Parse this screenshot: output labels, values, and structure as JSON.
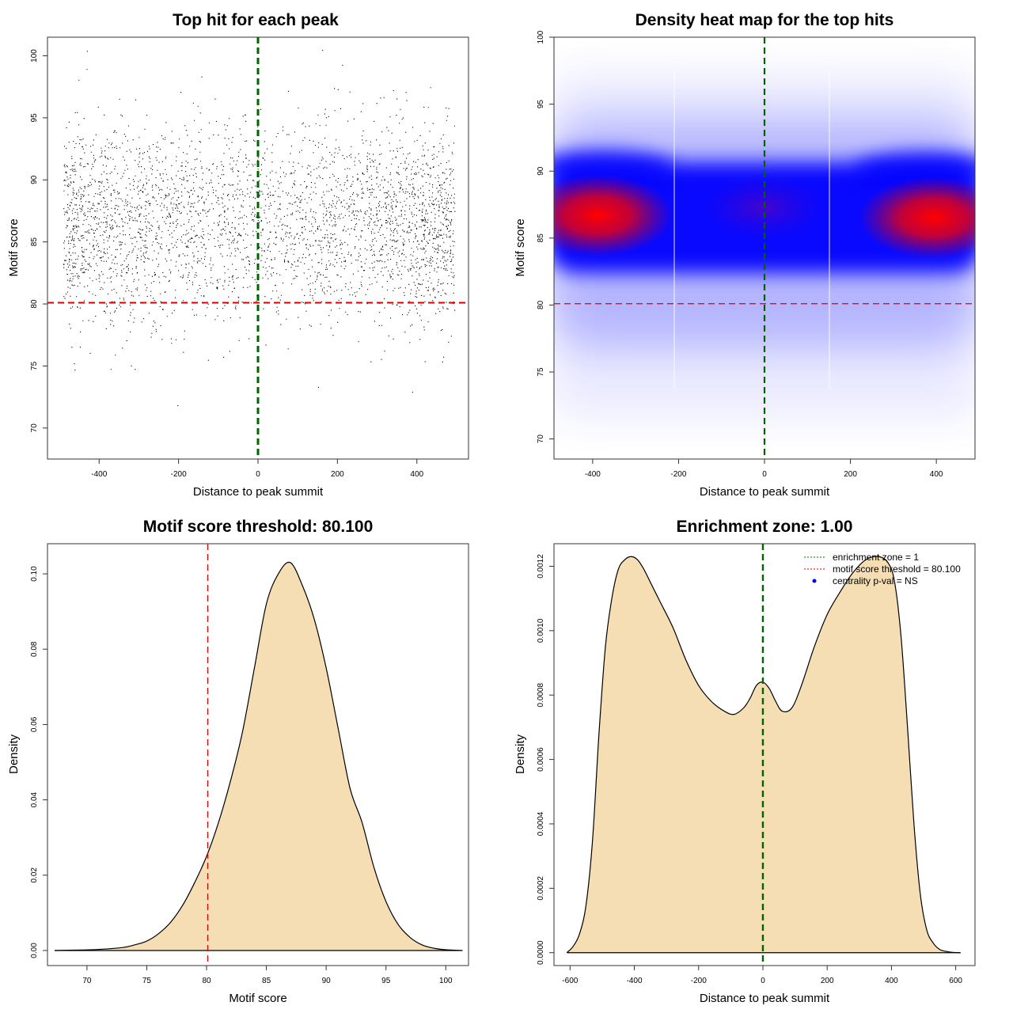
{
  "chart_data": [
    {
      "type": "scatter",
      "title": "Top hit for each peak",
      "xlabel": "Distance to peak summit",
      "ylabel": "Motif score",
      "xlim": [
        -530,
        530
      ],
      "ylim": [
        67.5,
        101.5
      ],
      "xticks": [
        -400,
        -200,
        0,
        200,
        400
      ],
      "yticks": [
        70,
        75,
        80,
        85,
        90,
        95,
        100
      ],
      "x_range_of_points": [
        -490,
        495
      ],
      "approx_point_count": 13000,
      "density_profile_note": "points concentrated between score 83 and 90, denser near x = -400 and x = +400",
      "vline": {
        "x": 0,
        "color": "#006400",
        "style": "dashed"
      },
      "hline": {
        "y": 80.1,
        "color": "#dd0000",
        "style": "dashed"
      }
    },
    {
      "type": "heatmap",
      "title": "Density heat map for the top hits",
      "xlabel": "Distance to peak summit",
      "ylabel": "Motif score",
      "xlim": [
        -490,
        490
      ],
      "ylim": [
        68.5,
        100
      ],
      "xticks": [
        -400,
        -200,
        0,
        200,
        400
      ],
      "yticks": [
        70,
        75,
        80,
        85,
        90,
        95,
        100
      ],
      "hotspots": [
        {
          "x": -390,
          "y": 87.4,
          "relative_density": 1.0
        },
        {
          "x": 390,
          "y": 86.8,
          "relative_density": 0.95
        },
        {
          "x": 0,
          "y": 86.5,
          "relative_density": 0.45
        }
      ],
      "color_scale": [
        "#ffffff",
        "#0000ff",
        "#ff0000"
      ],
      "vline": {
        "x": 0,
        "color": "#006400",
        "style": "dashed"
      },
      "hline": {
        "y": 80.1,
        "color": "#dd0000",
        "style": "dashed"
      }
    },
    {
      "type": "area",
      "title": "Motif score threshold: 80.100",
      "xlabel": "Motif score",
      "ylabel": "Density",
      "xlim": [
        66.7,
        101.9
      ],
      "ylim": [
        -0.004,
        0.108
      ],
      "xticks": [
        70,
        75,
        80,
        85,
        90,
        95,
        100
      ],
      "yticks": [
        0.0,
        0.02,
        0.04,
        0.06,
        0.08,
        0.1
      ],
      "ytick_labels": [
        "0.00",
        "0.02",
        "0.04",
        "0.06",
        "0.08",
        "0.10"
      ],
      "x": [
        67.3,
        69,
        71,
        73,
        74,
        75,
        76,
        77,
        78,
        79,
        80,
        81,
        82,
        83,
        84,
        85,
        86,
        87,
        88,
        89,
        90,
        91,
        92,
        93,
        94,
        95,
        96,
        97,
        98,
        99,
        100,
        101.4
      ],
      "y": [
        0.0,
        0.0001,
        0.0003,
        0.0008,
        0.0015,
        0.0025,
        0.0045,
        0.0075,
        0.012,
        0.018,
        0.025,
        0.034,
        0.045,
        0.058,
        0.075,
        0.092,
        0.1,
        0.103,
        0.097,
        0.088,
        0.075,
        0.059,
        0.043,
        0.034,
        0.022,
        0.013,
        0.007,
        0.0035,
        0.0015,
        0.0006,
        0.0002,
        0.0
      ],
      "fill": "#f5deb3",
      "vline": {
        "x": 80.1,
        "color": "#dd0000",
        "style": "dashed"
      }
    },
    {
      "type": "area",
      "title": "Enrichment zone: 1.00",
      "xlabel": "Distance to peak summit",
      "ylabel": "Density",
      "xlim": [
        -650,
        660
      ],
      "ylim": [
        -4e-05,
        0.00127
      ],
      "xticks": [
        -600,
        -400,
        -200,
        0,
        200,
        400,
        600
      ],
      "yticks": [
        0.0,
        0.0002,
        0.0004,
        0.0006,
        0.0008,
        0.001,
        0.0012
      ],
      "ytick_labels": [
        "0.0000",
        "0.0002",
        "0.0004",
        "0.0006",
        "0.0008",
        "0.0010",
        "0.0012"
      ],
      "x": [
        -610,
        -590,
        -570,
        -550,
        -530,
        -510,
        -490,
        -470,
        -450,
        -430,
        -410,
        -390,
        -370,
        -350,
        -320,
        -280,
        -240,
        -200,
        -160,
        -120,
        -90,
        -60,
        -40,
        -20,
        0,
        20,
        40,
        60,
        90,
        120,
        160,
        200,
        240,
        280,
        320,
        360,
        390,
        410,
        430,
        450,
        470,
        490,
        510,
        530,
        550,
        570,
        590,
        615
      ],
      "y": [
        0.0,
        2e-05,
        6e-05,
        0.00015,
        0.00035,
        0.00068,
        0.00095,
        0.0011,
        0.00119,
        0.00122,
        0.00123,
        0.00122,
        0.00119,
        0.00115,
        0.00109,
        0.00101,
        0.00091,
        0.00083,
        0.00078,
        0.00075,
        0.00074,
        0.00076,
        0.00079,
        0.00083,
        0.00084,
        0.00082,
        0.00078,
        0.00075,
        0.00076,
        0.00083,
        0.00095,
        0.00105,
        0.00112,
        0.00118,
        0.00122,
        0.00123,
        0.00121,
        0.00115,
        0.00098,
        0.0007,
        0.0004,
        0.00018,
        7e-05,
        3e-05,
        1e-05,
        4e-06,
        1e-06,
        0.0
      ],
      "fill": "#f5deb3",
      "vline": {
        "x": 0,
        "color": "#006400",
        "style": "dashed"
      },
      "legend": {
        "position": "top-right",
        "entries": [
          {
            "label": "enrichment zone = 1",
            "color": "#006400",
            "symbol": "dotted-line"
          },
          {
            "label": "motif score threshold = 80.100",
            "color": "#dd0000",
            "symbol": "dotted-line"
          },
          {
            "label": "centrality p-val = NS",
            "color": "#0000ff",
            "symbol": "point"
          }
        ]
      }
    }
  ]
}
